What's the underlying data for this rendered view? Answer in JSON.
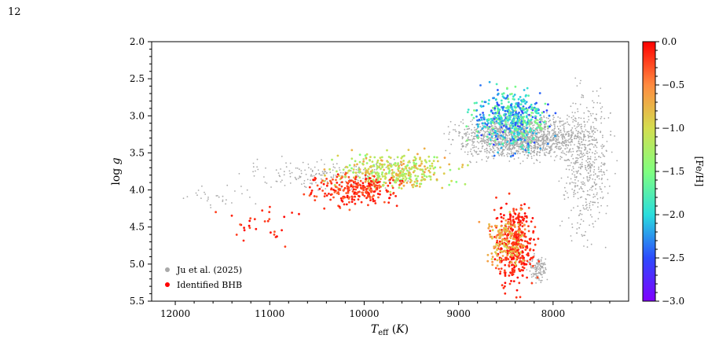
{
  "page": {
    "number": "12"
  },
  "chart_data": {
    "type": "scatter",
    "xlabel": "T_eff (K)",
    "ylabel": "log g",
    "x_ticks": [
      12000,
      11000,
      10000,
      9000,
      8000
    ],
    "y_ticks": [
      2.0,
      2.5,
      3.0,
      3.5,
      4.0,
      4.5,
      5.0,
      5.5
    ],
    "xlim": [
      12250,
      7200
    ],
    "ylim": [
      5.5,
      2.0
    ],
    "x_inverted": true,
    "y_inverted": true,
    "legend": {
      "placement": "lower-left"
    },
    "colorbar": {
      "label": "[Fe/H]",
      "range": [
        -3.0,
        0.0
      ],
      "ticks": [
        0.0,
        -0.5,
        -1.0,
        -1.5,
        -2.0,
        -2.5,
        -3.0
      ],
      "colormap": "rainbow"
    },
    "series": [
      {
        "name": "Ju et al. (2025)",
        "color": "#a9a9a9",
        "regions": [
          {
            "x_range": [
              7350,
              9300
            ],
            "y_range": [
              2.9,
              3.7
            ],
            "approx_count": 1500
          },
          {
            "x_range": [
              7300,
              8000
            ],
            "y_range": [
              2.3,
              5.0
            ],
            "approx_count": 500
          },
          {
            "x_range": [
              9300,
              11500
            ],
            "y_range": [
              3.5,
              4.1
            ],
            "approx_count": 200
          },
          {
            "x_range": [
              11000,
              12100
            ],
            "y_range": [
              3.9,
              4.3
            ],
            "approx_count": 30
          },
          {
            "x_range": [
              8000,
              8300
            ],
            "y_range": [
              4.8,
              5.3
            ],
            "approx_count": 120
          }
        ]
      },
      {
        "name": "Identified BHB",
        "color": "#ff0000",
        "regions": [
          {
            "x_range": [
              7900,
              9000
            ],
            "y_range": [
              2.5,
              3.6
            ],
            "feh_range": [
              -2.6,
              -1.4
            ],
            "approx_count": 500
          },
          {
            "x_range": [
              8800,
              10600
            ],
            "y_range": [
              3.4,
              4.1
            ],
            "feh_range": [
              -1.5,
              -0.6
            ],
            "approx_count": 350
          },
          {
            "x_range": [
              9500,
              10700
            ],
            "y_range": [
              3.7,
              4.3
            ],
            "feh_range": [
              -0.4,
              0.0
            ],
            "approx_count": 250
          },
          {
            "x_range": [
              8100,
              8700
            ],
            "y_range": [
              4.0,
              5.5
            ],
            "feh_range": [
              -0.3,
              0.0
            ],
            "approx_count": 400
          },
          {
            "x_range": [
              8200,
              8800
            ],
            "y_range": [
              4.2,
              5.2
            ],
            "feh_range": [
              -1.0,
              -0.5
            ],
            "approx_count": 150
          },
          {
            "x_range": [
              10500,
              11800
            ],
            "y_range": [
              4.0,
              4.9
            ],
            "feh_range": [
              -0.3,
              0.0
            ],
            "approx_count": 30
          }
        ]
      }
    ]
  }
}
